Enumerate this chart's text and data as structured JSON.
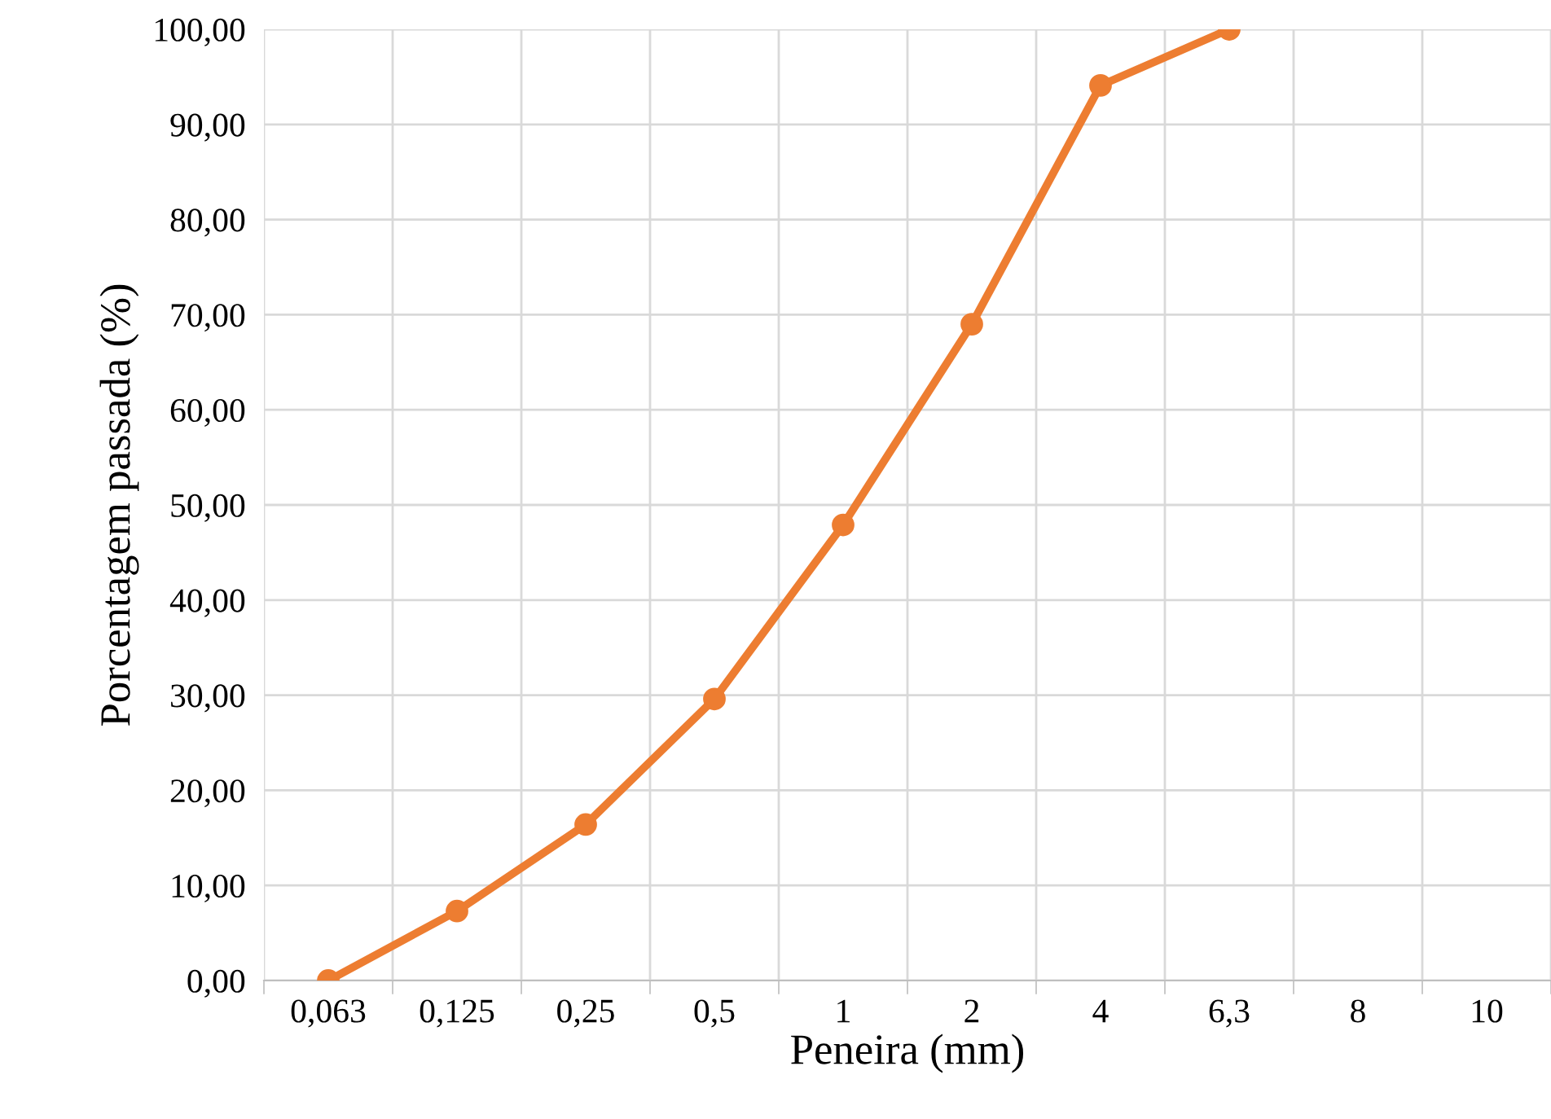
{
  "chart_data": {
    "type": "line",
    "xlabel": "Peneira (mm)",
    "ylabel": "Porcentagem passada (%)",
    "categories": [
      "0,063",
      "0,125",
      "0,25",
      "0,5",
      "1",
      "2",
      "4",
      "6,3",
      "8",
      "10"
    ],
    "series": [
      {
        "color": "#ed7d31",
        "values": [
          0,
          7.3,
          16.4,
          29.6,
          47.9,
          69.0,
          94.1,
          100,
          null,
          null
        ]
      }
    ],
    "ylim": [
      0,
      100
    ],
    "yticks": [
      {
        "value": 0,
        "label": "0,00"
      },
      {
        "value": 10,
        "label": "10,00"
      },
      {
        "value": 20,
        "label": "20,00"
      },
      {
        "value": 30,
        "label": "30,00"
      },
      {
        "value": 40,
        "label": "40,00"
      },
      {
        "value": 50,
        "label": "50,00"
      },
      {
        "value": 60,
        "label": "60,00"
      },
      {
        "value": 70,
        "label": "70,00"
      },
      {
        "value": 80,
        "label": "80,00"
      },
      {
        "value": 90,
        "label": "90,00"
      },
      {
        "value": 100,
        "label": "100,00"
      }
    ],
    "grid": true,
    "marker": "circle",
    "line_style": "solid"
  }
}
